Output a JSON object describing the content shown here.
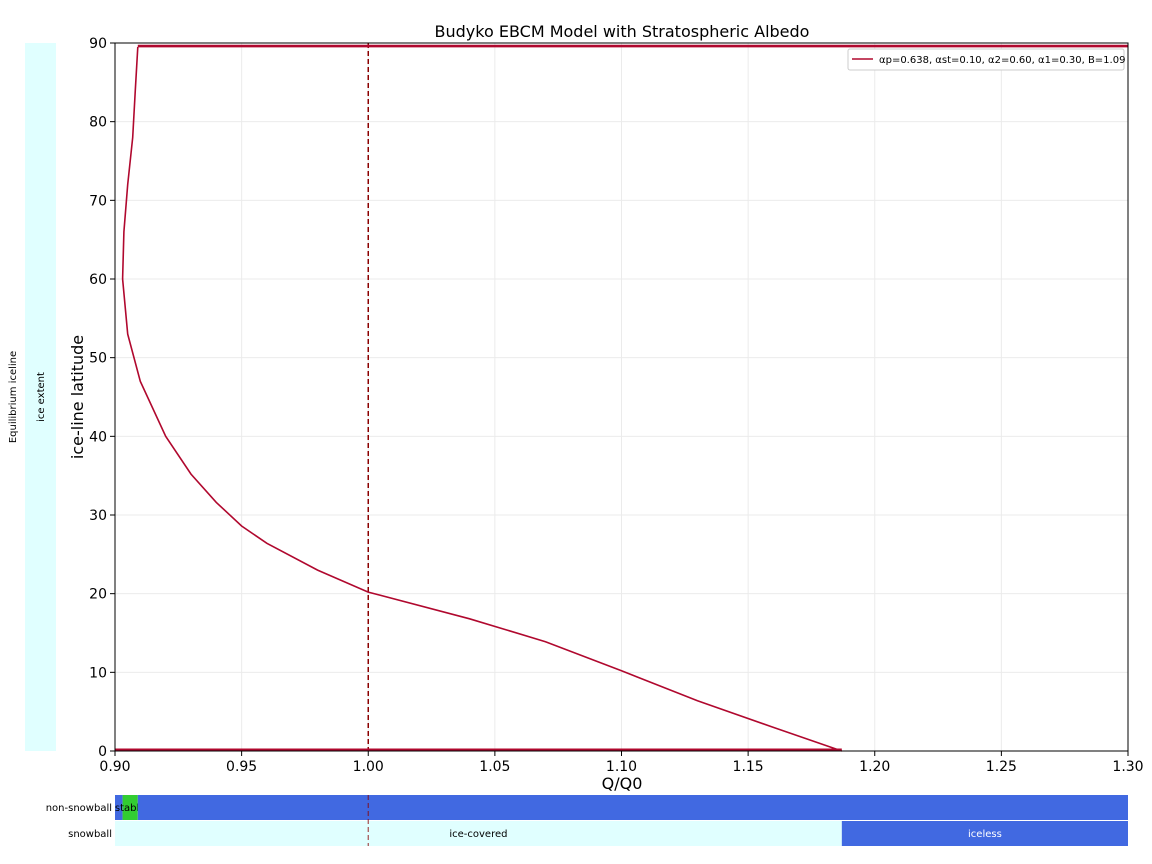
{
  "chart_data": {
    "type": "line",
    "title": "Budyko EBCM Model with Stratospheric Albedo",
    "xlabel": "Q/Q0",
    "ylabel": "ice-line latitude",
    "xlim": [
      0.9,
      1.3
    ],
    "ylim": [
      0,
      90
    ],
    "xticks": [
      "0.90",
      "0.95",
      "1.00",
      "1.05",
      "1.10",
      "1.15",
      "1.20",
      "1.25",
      "1.30"
    ],
    "yticks": [
      "0",
      "10",
      "20",
      "30",
      "40",
      "50",
      "60",
      "70",
      "80",
      "90"
    ],
    "grid": true,
    "legend_position": "top-right",
    "legend_label": "αp=0.638, αst=0.10, α2=0.60, α1=0.30, B=1.09",
    "line_color": "#b0082e",
    "reference_line": {
      "x": 1.0,
      "style": "dashed",
      "color": "#8b0000"
    },
    "series": [
      {
        "points": [
          [
            1.187,
            0
          ],
          [
            1.16,
            3
          ],
          [
            1.13,
            6.4
          ],
          [
            1.1,
            10.2
          ],
          [
            1.07,
            13.9
          ],
          [
            1.04,
            16.8
          ],
          [
            1.0,
            20.2
          ],
          [
            0.98,
            23.0
          ],
          [
            0.96,
            26.4
          ],
          [
            0.95,
            28.6
          ],
          [
            0.94,
            31.6
          ],
          [
            0.93,
            35.2
          ],
          [
            0.92,
            40.0
          ],
          [
            0.91,
            47.0
          ],
          [
            0.905,
            53.0
          ],
          [
            0.903,
            60.0
          ],
          [
            0.9035,
            66.0
          ],
          [
            0.905,
            72.0
          ],
          [
            0.907,
            78.0
          ],
          [
            0.908,
            84.0
          ],
          [
            0.909,
            89.5
          ]
        ]
      },
      {
        "points": [
          [
            0.909,
            89.6
          ],
          [
            1.3,
            89.6
          ]
        ]
      },
      {
        "points": [
          [
            0.9,
            0.15
          ],
          [
            1.187,
            0.15
          ]
        ]
      }
    ],
    "left_bar": {
      "text_outer": "Equilibrium iceline",
      "text_inner": "ice extent",
      "color": "#e0ffff"
    },
    "bottom_bars": {
      "rows": [
        {
          "label": "non-snowball",
          "segments": [
            {
              "x0": 0.9,
              "x1": 0.903,
              "color": "#4169e1",
              "text": ""
            },
            {
              "x0": 0.903,
              "x1": 0.909,
              "color": "#32cd32",
              "text": "stable"
            },
            {
              "x0": 0.909,
              "x1": 1.3,
              "color": "#4169e1",
              "text": ""
            }
          ]
        },
        {
          "label": "snowball",
          "segments": [
            {
              "x0": 0.9,
              "x1": 1.187,
              "color": "#e0ffff",
              "text": "ice-covered"
            },
            {
              "x0": 1.187,
              "x1": 1.3,
              "color": "#4169e1",
              "text": "iceless"
            }
          ]
        }
      ]
    }
  }
}
